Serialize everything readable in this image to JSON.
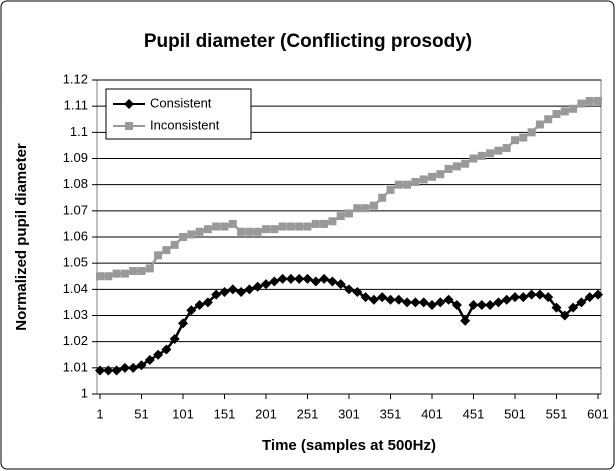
{
  "chart_data": {
    "type": "line",
    "title": "Pupil diameter (Conflicting prosody)",
    "x_label": "Time (samples at 500Hz)",
    "y_label": "Normalized pupil diameter",
    "x": [
      1,
      11,
      21,
      31,
      41,
      51,
      61,
      71,
      81,
      91,
      101,
      111,
      121,
      131,
      141,
      151,
      161,
      171,
      181,
      191,
      201,
      211,
      221,
      231,
      241,
      251,
      261,
      271,
      281,
      291,
      301,
      311,
      321,
      331,
      341,
      351,
      361,
      371,
      381,
      391,
      401,
      411,
      421,
      431,
      441,
      451,
      461,
      471,
      481,
      491,
      501,
      511,
      521,
      531,
      541,
      551,
      561,
      571,
      581,
      591,
      601
    ],
    "series": [
      {
        "name": "Consistent",
        "color": "#000000",
        "marker": "diamond",
        "values": [
          1.009,
          1.009,
          1.009,
          1.01,
          1.01,
          1.011,
          1.013,
          1.015,
          1.017,
          1.021,
          1.027,
          1.032,
          1.034,
          1.035,
          1.038,
          1.039,
          1.04,
          1.039,
          1.04,
          1.041,
          1.042,
          1.043,
          1.044,
          1.044,
          1.044,
          1.044,
          1.043,
          1.044,
          1.043,
          1.042,
          1.04,
          1.039,
          1.037,
          1.036,
          1.037,
          1.036,
          1.036,
          1.035,
          1.035,
          1.035,
          1.034,
          1.035,
          1.036,
          1.034,
          1.028,
          1.034,
          1.034,
          1.034,
          1.035,
          1.036,
          1.037,
          1.037,
          1.038,
          1.038,
          1.037,
          1.033,
          1.03,
          1.033,
          1.035,
          1.037,
          1.038
        ]
      },
      {
        "name": "Inconsistent",
        "color": "#999999",
        "marker": "square",
        "values": [
          1.045,
          1.045,
          1.046,
          1.046,
          1.047,
          1.047,
          1.048,
          1.053,
          1.055,
          1.057,
          1.06,
          1.061,
          1.062,
          1.063,
          1.064,
          1.064,
          1.065,
          1.062,
          1.062,
          1.062,
          1.063,
          1.063,
          1.064,
          1.064,
          1.064,
          1.064,
          1.065,
          1.065,
          1.066,
          1.068,
          1.069,
          1.071,
          1.071,
          1.072,
          1.075,
          1.078,
          1.08,
          1.08,
          1.081,
          1.082,
          1.083,
          1.084,
          1.086,
          1.087,
          1.088,
          1.09,
          1.091,
          1.092,
          1.093,
          1.094,
          1.097,
          1.098,
          1.1,
          1.103,
          1.105,
          1.107,
          1.108,
          1.109,
          1.111,
          1.112,
          1.112
        ]
      }
    ],
    "xlim": [
      1,
      601
    ],
    "xticks": [
      1,
      51,
      101,
      151,
      201,
      251,
      301,
      351,
      401,
      451,
      501,
      551,
      601
    ],
    "ylim": [
      1,
      1.12
    ],
    "yticks": [
      1,
      1.01,
      1.02,
      1.03,
      1.04,
      1.05,
      1.06,
      1.07,
      1.08,
      1.09,
      1.1,
      1.11,
      1.12
    ],
    "grid": true,
    "legend": "upper-left"
  }
}
